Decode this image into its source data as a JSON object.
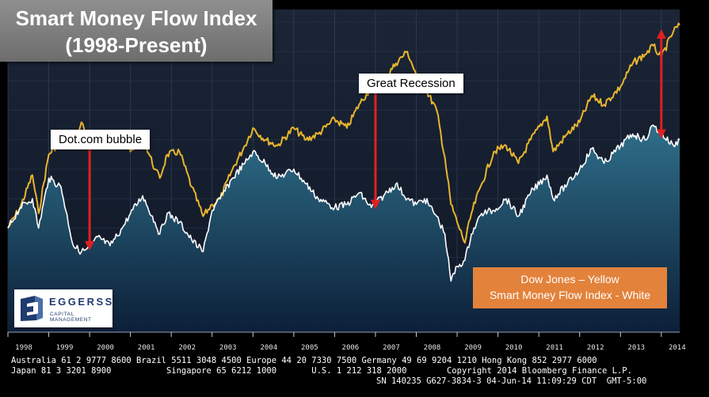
{
  "title": {
    "line1": "Smart Money Flow Index",
    "line2": "(1998-Present)"
  },
  "annotations": {
    "dotcom": "Dot.com bubble",
    "recession": "Great Recession"
  },
  "legend": {
    "line1": "Dow Jones – Yellow",
    "line2": "Smart Money Flow Index - White"
  },
  "logo": {
    "name": "EGGERSS",
    "subtitle": "CAPITAL MANAGEMENT"
  },
  "footer": {
    "line1": "Australia 61 2 9777 8600 Brazil 5511 3048 4500 Europe 44 20 7330 7500 Germany 49 69 9204 1210 Hong Kong 852 2977 6000",
    "line2": "Japan 81 3 3201 8900           Singapore 65 6212 1000       U.S. 1 212 318 2000        Copyright 2014 Bloomberg Finance L.P.",
    "line3": "SN 140235 G627-3834-3 04-Jun-14 11:09:29 CDT  GMT-5:00"
  },
  "colors": {
    "dow": "#e8b52d",
    "smart_money": "#ffffff",
    "arrow": "#e02020",
    "legend_bg": "#e3823b",
    "area_top": "#2f6f8a",
    "area_bottom": "#0c1f38"
  },
  "chart_data": {
    "type": "line",
    "title": "Smart Money Flow Index (1998-Present)",
    "x_ticks": [
      "1998",
      "1999",
      "2000",
      "2001",
      "2002",
      "2003",
      "2004",
      "2005",
      "2006",
      "2007",
      "2008",
      "2009",
      "2010",
      "2011",
      "2012",
      "2013",
      "2014"
    ],
    "xlim": [
      1998.0,
      2014.45
    ],
    "ylim": [
      0,
      100
    ],
    "y_units": "relative index level (no axis scale shown)",
    "series": [
      {
        "name": "Dow Jones",
        "color": "#e8b52d",
        "x": [
          1998.0,
          1998.3,
          1998.6,
          1998.75,
          1999.0,
          1999.3,
          1999.6,
          1999.8,
          2000.0,
          2000.2,
          2000.5,
          2000.8,
          2001.0,
          2001.3,
          2001.6,
          2001.72,
          2001.9,
          2002.2,
          2002.5,
          2002.78,
          2003.0,
          2003.2,
          2003.5,
          2003.8,
          2004.0,
          2004.3,
          2004.6,
          2005.0,
          2005.3,
          2005.6,
          2006.0,
          2006.3,
          2006.6,
          2006.9,
          2007.2,
          2007.5,
          2007.78,
          2008.0,
          2008.2,
          2008.5,
          2008.7,
          2008.85,
          2009.0,
          2009.19,
          2009.35,
          2009.6,
          2009.9,
          2010.2,
          2010.5,
          2010.8,
          2011.2,
          2011.35,
          2011.7,
          2012.0,
          2012.3,
          2012.6,
          2013.0,
          2013.3,
          2013.6,
          2013.8,
          2014.0,
          2014.3,
          2014.45
        ],
        "values": [
          30,
          37,
          48,
          35,
          55,
          60,
          58,
          66,
          57,
          63,
          60,
          62,
          56,
          61,
          50,
          47,
          55,
          56,
          44,
          34,
          38,
          40,
          50,
          58,
          64,
          60,
          58,
          64,
          60,
          62,
          67,
          64,
          72,
          78,
          80,
          86,
          90,
          82,
          78,
          70,
          54,
          38,
          32,
          25,
          35,
          45,
          56,
          58,
          52,
          60,
          68,
          56,
          62,
          66,
          75,
          72,
          78,
          86,
          89,
          92,
          88,
          97,
          99
        ]
      },
      {
        "name": "Smart Money Flow Index",
        "color": "#ffffff",
        "x": [
          1998.0,
          1998.3,
          1998.6,
          1998.75,
          1999.0,
          1999.3,
          1999.6,
          1999.8,
          2000.0,
          2000.2,
          2000.5,
          2000.8,
          2001.0,
          2001.3,
          2001.6,
          2001.72,
          2001.9,
          2002.2,
          2002.5,
          2002.78,
          2003.0,
          2003.2,
          2003.5,
          2003.8,
          2004.0,
          2004.3,
          2004.6,
          2005.0,
          2005.3,
          2005.6,
          2006.0,
          2006.3,
          2006.6,
          2006.9,
          2007.2,
          2007.5,
          2007.78,
          2008.0,
          2008.2,
          2008.5,
          2008.7,
          2008.85,
          2009.0,
          2009.19,
          2009.35,
          2009.6,
          2009.9,
          2010.2,
          2010.5,
          2010.8,
          2011.2,
          2011.35,
          2011.7,
          2012.0,
          2012.3,
          2012.6,
          2013.0,
          2013.3,
          2013.6,
          2013.8,
          2014.0,
          2014.3,
          2014.45
        ],
        "values": [
          30,
          37,
          40,
          30,
          47,
          44,
          24,
          22,
          23,
          27,
          24,
          30,
          35,
          41,
          32,
          28,
          35,
          32,
          26,
          22,
          36,
          40,
          47,
          52,
          56,
          52,
          47,
          50,
          45,
          40,
          37,
          38,
          42,
          37,
          41,
          45,
          40,
          38,
          40,
          34,
          28,
          12,
          17,
          19,
          28,
          35,
          36,
          40,
          34,
          42,
          48,
          40,
          45,
          50,
          57,
          52,
          58,
          62,
          60,
          65,
          62,
          58,
          60
        ]
      }
    ],
    "arrows": [
      {
        "x": 2000.0,
        "from": 61,
        "to": 24
      },
      {
        "x": 2007.0,
        "from": 79,
        "to": 38
      },
      {
        "x": 2014.0,
        "from": 96,
        "to": 62
      }
    ]
  }
}
